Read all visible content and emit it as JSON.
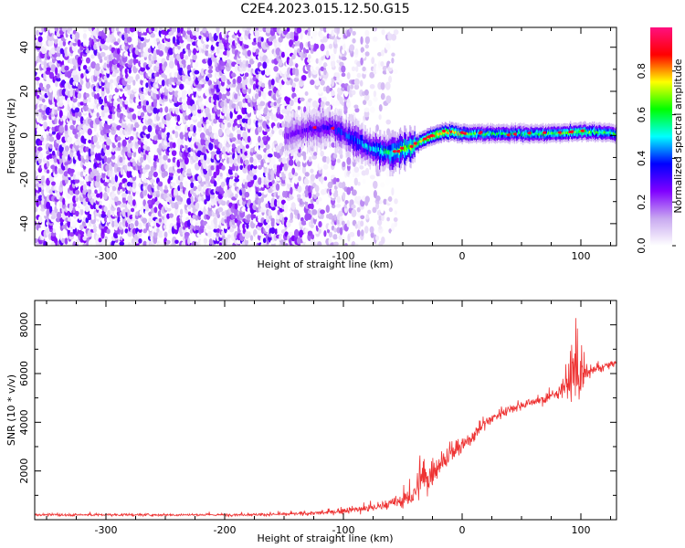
{
  "title": "C2E4.2023.015.12.50.G15",
  "chart_data": [
    {
      "type": "heatmap",
      "xlabel": "Height of straight line (km)",
      "ylabel": "Frequency (Hz)",
      "xlim": [
        -360,
        130
      ],
      "ylim": [
        -50,
        49
      ],
      "xticks": [
        -300,
        -200,
        -100,
        0,
        100
      ],
      "yticks": [
        -40,
        -20,
        0,
        20,
        40
      ],
      "colorbar": {
        "label": "Normalized spectral amplitude",
        "range": [
          0.0,
          1.0
        ],
        "ticks": [
          0.0,
          0.2,
          0.4,
          0.6,
          0.8
        ],
        "colormap": [
          "#ffffff",
          "#c8a8f0",
          "#8000ff",
          "#0000ff",
          "#00ffff",
          "#00ff00",
          "#ffff00",
          "#ff0000",
          "#ff1080"
        ]
      },
      "noise_region_x": [
        -360,
        -55
      ],
      "signal_track": {
        "x": [
          -150,
          -130,
          -110,
          -100,
          -90,
          -80,
          -70,
          -60,
          -50,
          -40,
          -30,
          -20,
          -10,
          0,
          20,
          50,
          80,
          100,
          130
        ],
        "y": [
          0,
          3,
          4,
          1,
          -2,
          -5,
          -7,
          -8,
          -6,
          -4,
          -1,
          1,
          2,
          1,
          1,
          1,
          1,
          2,
          1
        ],
        "amplitude": [
          0.25,
          0.3,
          0.35,
          0.4,
          0.45,
          0.5,
          0.55,
          0.6,
          0.7,
          0.75,
          0.8,
          0.85,
          0.85,
          0.7,
          0.6,
          0.6,
          0.65,
          0.7,
          0.6
        ]
      }
    },
    {
      "type": "line",
      "xlabel": "Height of straight line (km)",
      "ylabel": "SNR (10 * v/v)",
      "xlim": [
        -360,
        130
      ],
      "ylim": [
        0,
        9000
      ],
      "xticks": [
        -300,
        -200,
        -100,
        0,
        100
      ],
      "yticks": [
        2000,
        4000,
        6000,
        8000
      ],
      "series": [
        {
          "color": "#ee3333",
          "x": [
            -360,
            -300,
            -200,
            -150,
            -110,
            -100,
            -90,
            -80,
            -70,
            -60,
            -50,
            -40,
            -35,
            -30,
            -20,
            -10,
            0,
            10,
            20,
            30,
            40,
            50,
            60,
            70,
            80,
            85,
            90,
            95,
            100,
            105,
            110,
            120,
            130
          ],
          "y": [
            200,
            200,
            200,
            220,
            300,
            380,
            420,
            450,
            550,
            650,
            800,
            1000,
            1800,
            1600,
            2300,
            2700,
            3000,
            3500,
            4000,
            4300,
            4550,
            4700,
            4850,
            4950,
            5200,
            5500,
            5700,
            6200,
            5900,
            6000,
            6100,
            6300,
            6450
          ],
          "noise_amplitude": [
            80,
            80,
            80,
            90,
            150,
            200,
            220,
            250,
            300,
            350,
            500,
            700,
            1500,
            1000,
            800,
            700,
            600,
            450,
            400,
            350,
            300,
            280,
            280,
            300,
            350,
            700,
            1200,
            2500,
            2200,
            500,
            300,
            250,
            200
          ]
        }
      ]
    }
  ]
}
